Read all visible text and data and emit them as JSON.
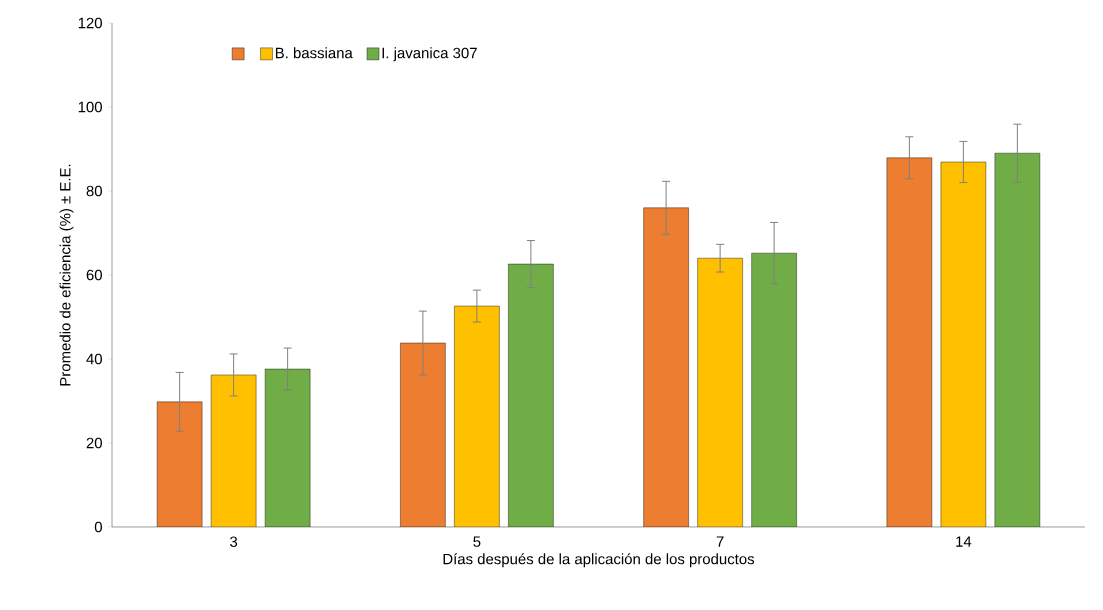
{
  "chart_data": {
    "type": "bar",
    "xlabel": "Días después de la aplicación de los productos",
    "ylabel": "Promedio de eficiencia (%) ± E.E.",
    "categories": [
      "3",
      "5",
      "7",
      "14"
    ],
    "series": [
      {
        "color": "#ed7d31",
        "values": [
          29.8,
          43.8,
          76,
          87.9
        ],
        "errors": [
          7,
          7.6,
          6.3,
          5
        ]
      },
      {
        "name": "B. bassiana",
        "color": "#ffc000",
        "values": [
          36.2,
          52.6,
          64,
          86.9
        ],
        "errors": [
          5,
          3.8,
          3.3,
          4.9
        ]
      },
      {
        "name": "I. javanica 307",
        "color": "#70ad47",
        "values": [
          37.6,
          62.6,
          65.2,
          89
        ],
        "errors": [
          5,
          5.6,
          7.3,
          6.9
        ]
      }
    ],
    "ylim": [
      0,
      120
    ],
    "yticks": [
      0,
      20,
      40,
      60,
      80,
      100,
      120
    ],
    "grid": false,
    "legend": "top left"
  }
}
